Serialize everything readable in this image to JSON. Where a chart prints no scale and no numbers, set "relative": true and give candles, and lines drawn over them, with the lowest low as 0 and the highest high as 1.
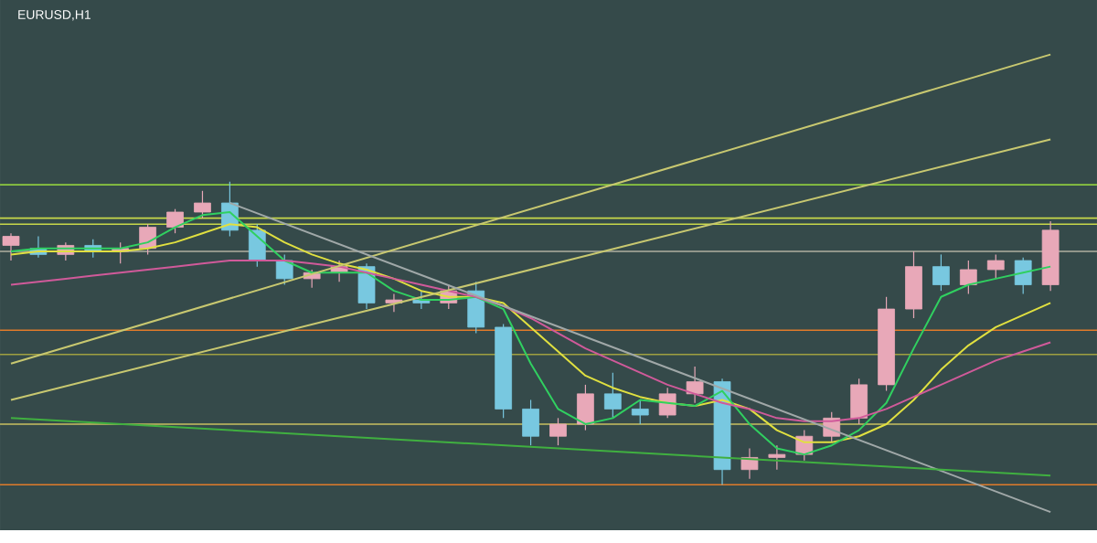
{
  "chart_data": {
    "type": "candlestick",
    "title": "EURUSD,H1",
    "relative": true,
    "categories": [
      null,
      null,
      null,
      null,
      null,
      null,
      null,
      null,
      null,
      null,
      null,
      null,
      null,
      null,
      null,
      null,
      null,
      null,
      null,
      null,
      null,
      null,
      null,
      null,
      null,
      null,
      null,
      null,
      null,
      null,
      null,
      null,
      null,
      null,
      null,
      null,
      null,
      null,
      null
    ],
    "ohlc": [
      [
        0.79,
        0.83,
        0.74,
        0.82
      ],
      [
        0.78,
        0.82,
        0.75,
        0.76
      ],
      [
        0.76,
        0.8,
        0.74,
        0.79
      ],
      [
        0.79,
        0.81,
        0.75,
        0.77
      ],
      [
        0.77,
        0.8,
        0.73,
        0.78
      ],
      [
        0.78,
        0.86,
        0.76,
        0.85
      ],
      [
        0.85,
        0.91,
        0.83,
        0.9
      ],
      [
        0.9,
        0.97,
        0.88,
        0.93
      ],
      [
        0.93,
        1.0,
        0.82,
        0.84
      ],
      [
        0.84,
        0.86,
        0.72,
        0.74
      ],
      [
        0.74,
        0.76,
        0.66,
        0.68
      ],
      [
        0.68,
        0.71,
        0.65,
        0.7
      ],
      [
        0.7,
        0.74,
        0.67,
        0.72
      ],
      [
        0.72,
        0.73,
        0.58,
        0.6
      ],
      [
        0.6,
        0.63,
        0.57,
        0.61
      ],
      [
        0.61,
        0.64,
        0.58,
        0.6
      ],
      [
        0.6,
        0.66,
        0.58,
        0.64
      ],
      [
        0.64,
        0.67,
        0.5,
        0.52
      ],
      [
        0.52,
        0.53,
        0.22,
        0.25
      ],
      [
        0.25,
        0.28,
        0.13,
        0.16
      ],
      [
        0.16,
        0.22,
        0.13,
        0.2
      ],
      [
        0.2,
        0.33,
        0.18,
        0.3
      ],
      [
        0.3,
        0.37,
        0.22,
        0.25
      ],
      [
        0.25,
        0.28,
        0.2,
        0.23
      ],
      [
        0.23,
        0.32,
        0.22,
        0.3
      ],
      [
        0.3,
        0.39,
        0.27,
        0.34
      ],
      [
        0.34,
        0.35,
        0.0,
        0.05
      ],
      [
        0.05,
        0.12,
        0.02,
        0.09
      ],
      [
        0.09,
        0.13,
        0.05,
        0.1
      ],
      [
        0.1,
        0.18,
        0.08,
        0.16
      ],
      [
        0.16,
        0.24,
        0.14,
        0.22
      ],
      [
        0.22,
        0.35,
        0.2,
        0.33
      ],
      [
        0.33,
        0.62,
        0.31,
        0.58
      ],
      [
        0.58,
        0.77,
        0.55,
        0.72
      ],
      [
        0.72,
        0.76,
        0.64,
        0.66
      ],
      [
        0.66,
        0.74,
        0.63,
        0.71
      ],
      [
        0.71,
        0.76,
        0.68,
        0.74
      ],
      [
        0.74,
        0.75,
        0.63,
        0.66
      ],
      [
        0.66,
        0.87,
        0.64,
        0.84
      ]
    ],
    "series": [
      {
        "type": "line",
        "color": "#e0e040",
        "values": [
          0.76,
          0.77,
          0.77,
          0.77,
          0.77,
          0.78,
          0.8,
          0.83,
          0.86,
          0.85,
          0.8,
          0.76,
          0.73,
          0.71,
          0.68,
          0.64,
          0.62,
          0.62,
          0.6,
          0.52,
          0.44,
          0.36,
          0.32,
          0.29,
          0.27,
          0.26,
          0.28,
          0.25,
          0.18,
          0.14,
          0.14,
          0.16,
          0.2,
          0.28,
          0.38,
          0.46,
          0.52,
          0.56,
          0.6
        ]
      },
      {
        "type": "line",
        "color": "#30d060",
        "values": [
          0.77,
          0.78,
          0.78,
          0.78,
          0.78,
          0.8,
          0.85,
          0.89,
          0.9,
          0.82,
          0.74,
          0.7,
          0.7,
          0.7,
          0.64,
          0.61,
          0.61,
          0.62,
          0.58,
          0.4,
          0.25,
          0.2,
          0.22,
          0.28,
          0.27,
          0.26,
          0.31,
          0.2,
          0.12,
          0.1,
          0.13,
          0.18,
          0.27,
          0.45,
          0.62,
          0.66,
          0.68,
          0.7,
          0.72
        ]
      },
      {
        "type": "line",
        "color": "#d05a9a",
        "values": [
          0.66,
          0.67,
          0.68,
          0.69,
          0.7,
          0.71,
          0.72,
          0.73,
          0.74,
          0.74,
          0.74,
          0.73,
          0.72,
          0.7,
          0.68,
          0.66,
          0.64,
          0.62,
          0.59,
          0.55,
          0.5,
          0.45,
          0.41,
          0.37,
          0.33,
          0.3,
          0.27,
          0.25,
          0.22,
          0.21,
          0.21,
          0.22,
          0.25,
          0.29,
          0.33,
          0.37,
          0.41,
          0.44,
          0.47
        ]
      },
      {
        "type": "line",
        "color": "#c8c870",
        "values": [
          0.4,
          null,
          null,
          null,
          null,
          null,
          null,
          null,
          null,
          null,
          null,
          null,
          null,
          null,
          null,
          null,
          null,
          null,
          null,
          null,
          null,
          null,
          null,
          null,
          null,
          null,
          null,
          null,
          null,
          null,
          null,
          null,
          null,
          null,
          null,
          null,
          null,
          null,
          1.42
        ]
      },
      {
        "type": "line",
        "color": "#c8c870",
        "values": [
          0.28,
          null,
          null,
          null,
          null,
          null,
          null,
          null,
          null,
          null,
          null,
          null,
          null,
          null,
          null,
          null,
          null,
          null,
          null,
          null,
          null,
          null,
          null,
          null,
          null,
          null,
          null,
          null,
          null,
          null,
          null,
          null,
          null,
          null,
          null,
          null,
          null,
          null,
          1.14
        ]
      },
      {
        "type": "line",
        "color": "#a0a8a8",
        "values": [
          null,
          null,
          null,
          null,
          null,
          null,
          null,
          null,
          0.93,
          null,
          null,
          null,
          null,
          null,
          null,
          null,
          null,
          null,
          null,
          null,
          null,
          null,
          null,
          null,
          null,
          null,
          null,
          null,
          null,
          null,
          null,
          null,
          null,
          null,
          null,
          null,
          null,
          null,
          -0.09
        ]
      },
      {
        "type": "line",
        "color": "#40b040",
        "values": [
          0.22,
          null,
          null,
          null,
          null,
          null,
          null,
          null,
          null,
          null,
          null,
          null,
          null,
          null,
          null,
          null,
          null,
          null,
          null,
          null,
          null,
          null,
          null,
          null,
          null,
          null,
          null,
          null,
          null,
          null,
          null,
          null,
          null,
          null,
          null,
          null,
          null,
          null,
          0.03
        ]
      }
    ],
    "ref_lines": [
      {
        "axis": "y",
        "value": 0.99,
        "color": "#8cc840"
      },
      {
        "axis": "y",
        "value": 0.88,
        "color": "#c8d84a"
      },
      {
        "axis": "y",
        "value": 0.86,
        "color": "#c8d84a"
      },
      {
        "axis": "y",
        "value": 0.77,
        "color": "#b0b0a0"
      },
      {
        "axis": "y",
        "value": 0.51,
        "color": "#e07b2a"
      },
      {
        "axis": "y",
        "value": 0.43,
        "color": "#a0a040"
      },
      {
        "axis": "y",
        "value": 0.2,
        "color": "#c8c060"
      },
      {
        "axis": "y",
        "value": 0.0,
        "color": "#e07b2a"
      }
    ]
  }
}
